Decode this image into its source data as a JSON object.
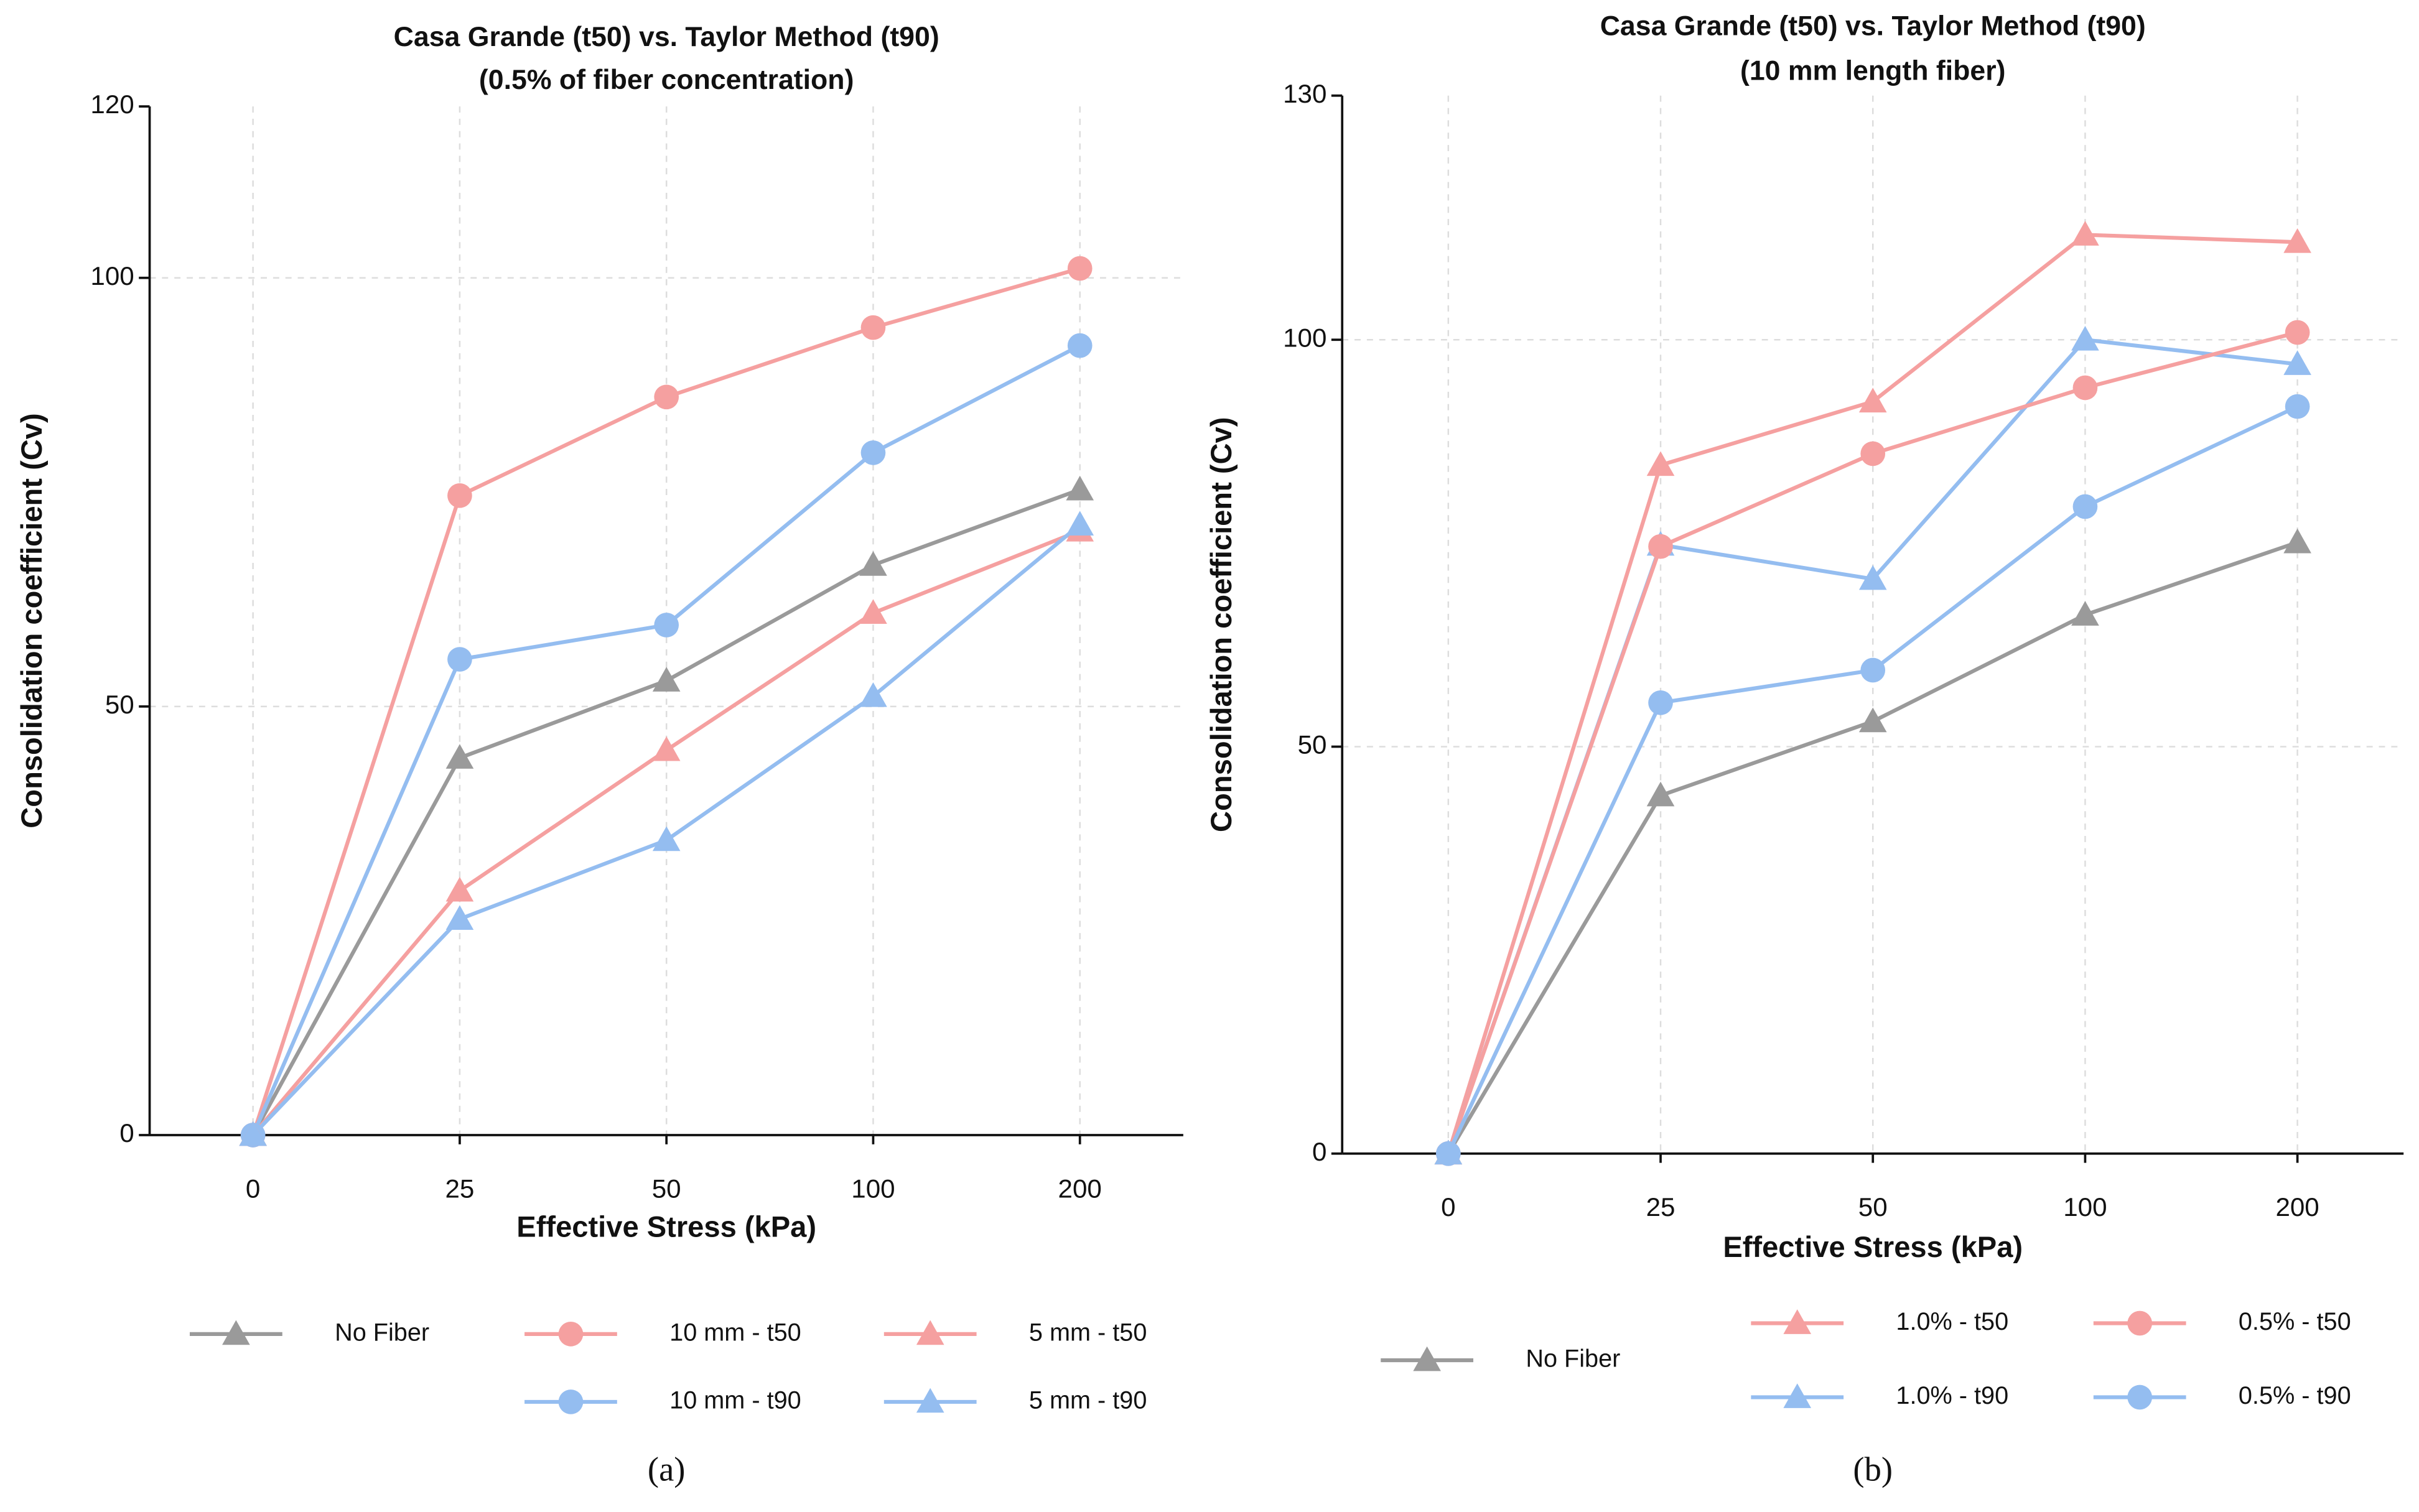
{
  "chart_data": [
    {
      "type": "line",
      "title": "Casa Grande (t50) vs. Taylor Method (t90)",
      "subtitle": "(0.5% of fiber concentration)",
      "panel_label": "(a)",
      "x_label": "Effective Stress (kPa)",
      "y_label": "Consolidation coefficient (Cv)",
      "categories": [
        "0",
        "25",
        "50",
        "100",
        "200"
      ],
      "ylim": [
        0,
        120
      ],
      "yticks": [
        0,
        50,
        100,
        120
      ],
      "grid": true,
      "series": [
        {
          "name": "No Fiber",
          "color": "#9a9a9a",
          "marker": "triangle",
          "values": [
            0,
            44,
            53,
            66.5,
            75.3
          ]
        },
        {
          "name": "10 mm - t50",
          "color": "#f5a0a0",
          "marker": "circle",
          "values": [
            0,
            74.6,
            86.1,
            94.2,
            101.1
          ]
        },
        {
          "name": "10 mm - t90",
          "color": "#94bdf0",
          "marker": "circle",
          "values": [
            0,
            55.5,
            59.5,
            79.6,
            92.1
          ]
        },
        {
          "name": "5 mm - t50",
          "color": "#f5a0a0",
          "marker": "triangle",
          "values": [
            0,
            28.5,
            44.9,
            60.9,
            70.5
          ]
        },
        {
          "name": "5 mm - t90",
          "color": "#94bdf0",
          "marker": "triangle",
          "values": [
            0,
            25.2,
            34.4,
            51.2,
            71.2
          ]
        }
      ]
    },
    {
      "type": "line",
      "title": "Casa Grande (t50) vs. Taylor Method (t90)",
      "subtitle": "(10 mm length fiber)",
      "panel_label": "(b)",
      "x_label": "Effective Stress (kPa)",
      "y_label": "Consolidation coefficient (Cv)",
      "categories": [
        "0",
        "25",
        "50",
        "100",
        "200"
      ],
      "ylim": [
        0,
        130
      ],
      "yticks": [
        0,
        50,
        100,
        130
      ],
      "grid": true,
      "series": [
        {
          "name": "No Fiber",
          "color": "#9a9a9a",
          "marker": "triangle",
          "values": [
            0,
            44,
            53.1,
            66.2,
            75.1
          ]
        },
        {
          "name": "1.0% - t50",
          "color": "#f5a0a0",
          "marker": "triangle",
          "values": [
            0,
            84.6,
            92.4,
            112.9,
            112
          ]
        },
        {
          "name": "1.0% - t90",
          "color": "#94bdf0",
          "marker": "triangle",
          "values": [
            0,
            74.8,
            70.6,
            100,
            97
          ]
        },
        {
          "name": "0.5% - t50",
          "color": "#f5a0a0",
          "marker": "circle",
          "values": [
            0,
            74.6,
            86,
            94.1,
            100.9
          ]
        },
        {
          "name": "0.5% - t90",
          "color": "#94bdf0",
          "marker": "circle",
          "values": [
            0,
            55.4,
            59.4,
            79.5,
            91.8
          ]
        }
      ]
    }
  ]
}
